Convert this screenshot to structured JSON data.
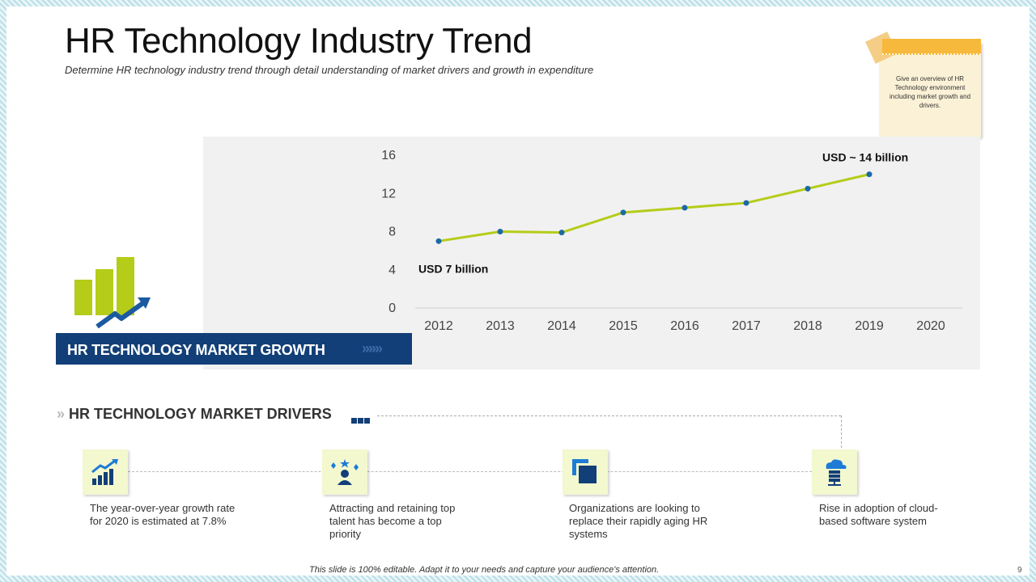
{
  "header": {
    "title": "HR Technology Industry Trend",
    "subtitle": "Determine HR technology industry trend through detail understanding of market drivers and growth in expenditure"
  },
  "note": {
    "text": "Give an overview of HR Technology environment including market growth and drivers."
  },
  "chart_data": {
    "type": "line",
    "categories": [
      "2012",
      "2013",
      "2014",
      "2015",
      "2016",
      "2017",
      "2018",
      "2019",
      "2020"
    ],
    "x": [
      2012,
      2013,
      2014,
      2015,
      2016,
      2017,
      2018,
      2019
    ],
    "values": [
      7,
      8,
      7.9,
      10,
      10.5,
      11,
      12.5,
      14
    ],
    "yticks": [
      0,
      4,
      8,
      12,
      16
    ],
    "ylim": [
      0,
      16
    ],
    "line_color": "#b5cc18",
    "marker_color": "#1b6aa5",
    "annotations": [
      {
        "text": "USD 7 billion",
        "x": 2012
      },
      {
        "text": "USD ~ 14 billion",
        "x": 2019
      }
    ],
    "title": "HR TECHNOLOGY MARKET GROWTH"
  },
  "banner": {
    "label": "HR TECHNOLOGY MARKET GROWTH",
    "arrows": "»»»»»"
  },
  "drivers": {
    "heading": "HR TECHNOLOGY MARKET DRIVERS",
    "heading_chevrons": "»",
    "items": [
      {
        "icon": "growth-chart-icon",
        "text": "The year-over-year growth rate for 2020 is estimated at 7.8%"
      },
      {
        "icon": "talent-star-icon",
        "text": "Attracting and retaining top talent has become a top priority"
      },
      {
        "icon": "replace-squares-icon",
        "text": "Organizations are looking to replace their rapidly aging HR systems"
      },
      {
        "icon": "cloud-server-icon",
        "text": "Rise in adoption of cloud-based software system"
      }
    ]
  },
  "footer": {
    "text": "This slide is 100% editable. Adapt it to your needs and capture your audience's attention.",
    "page": "9"
  },
  "colors": {
    "navy": "#123f77",
    "lime": "#b5cc18",
    "panel": "#f1f1f1",
    "note": "#fbf1d6",
    "tape": "#f6b93b"
  }
}
